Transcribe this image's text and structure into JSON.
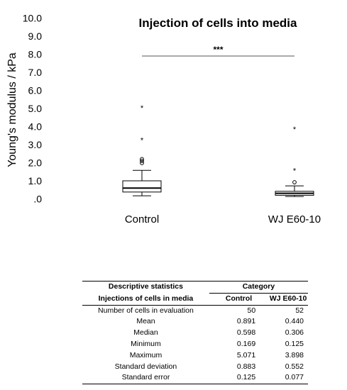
{
  "chart_data": {
    "type": "box",
    "title": "Injection of cells into media",
    "ylabel": "Young's modulus / kPa",
    "ylim": [
      0,
      10
    ],
    "yticks": [
      0,
      1,
      2,
      3,
      4,
      5,
      6,
      7,
      8,
      9,
      10
    ],
    "ytick_labels": [
      ".0",
      "1.0",
      "2.0",
      "3.0",
      "4.0",
      "5.0",
      "6.0",
      "7.0",
      "8.0",
      "9.0",
      "10.0"
    ],
    "categories": [
      "Control",
      "WJ E60-10"
    ],
    "boxes": [
      {
        "name": "Control",
        "whisker_low": 0.17,
        "q1": 0.38,
        "median": 0.6,
        "q3": 1.0,
        "whisker_high": 1.58,
        "outliers": [
          1.98,
          2.1,
          2.2
        ],
        "extremes": [
          3.3,
          5.07
        ]
      },
      {
        "name": "WJ E60-10",
        "whisker_low": 0.13,
        "q1": 0.2,
        "median": 0.31,
        "q3": 0.42,
        "whisker_high": 0.72,
        "outliers": [
          0.92
        ],
        "extremes": [
          1.6,
          3.9
        ]
      }
    ],
    "significance": {
      "label": "***",
      "y": 7.9,
      "from": "Control",
      "to": "WJ E60-10"
    },
    "grid": false,
    "legend": "none"
  },
  "table": {
    "title": "Descriptive statistics",
    "subtitle": "Injections of cells in media",
    "category_header": "Category",
    "columns": [
      "Control",
      "WJ E60-10"
    ],
    "rows": [
      {
        "label": "Number of cells in evaluation",
        "control": "50",
        "wj": "52"
      },
      {
        "label": "Mean",
        "control": "0.891",
        "wj": "0.440"
      },
      {
        "label": "Median",
        "control": "0.598",
        "wj": "0.306"
      },
      {
        "label": "Minimum",
        "control": "0.169",
        "wj": "0.125"
      },
      {
        "label": "Maximum",
        "control": "5.071",
        "wj": "3.898"
      },
      {
        "label": "Standard deviation",
        "control": "0.883",
        "wj": "0.552"
      },
      {
        "label": "Standard error",
        "control": "0.125",
        "wj": "0.077"
      }
    ]
  }
}
